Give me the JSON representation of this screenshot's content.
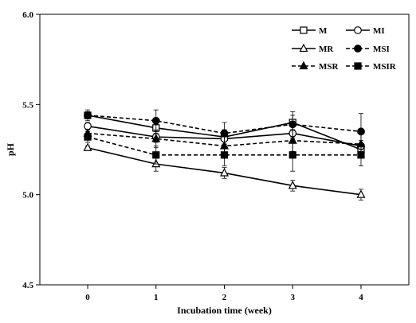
{
  "chart_data": {
    "type": "line",
    "title": "",
    "xlabel": "Incubation time (week)",
    "ylabel": "pH",
    "x": [
      0,
      1,
      2,
      3,
      4
    ],
    "x_tick_labels": [
      "0",
      "1",
      "2",
      "3",
      "4"
    ],
    "xlim": [
      -0.7,
      4.7
    ],
    "ylim": [
      4.5,
      6.0
    ],
    "y_ticks": [
      4.5,
      5.0,
      5.5,
      6.0
    ],
    "y_tick_labels": [
      "4.5",
      "5.0",
      "5.5",
      "6.0"
    ],
    "grid": false,
    "legend_position": "top-right",
    "series": [
      {
        "name": "M",
        "marker": "square-open",
        "dash": "solid",
        "values": [
          5.44,
          5.37,
          5.32,
          5.4,
          5.25
        ],
        "errors": [
          0.02,
          0.03,
          0.04,
          0.04,
          0.03
        ]
      },
      {
        "name": "MI",
        "marker": "circle-open",
        "dash": "solid",
        "values": [
          5.38,
          5.32,
          5.31,
          5.34,
          5.27
        ],
        "errors": [
          0.02,
          0.03,
          0.05,
          0.04,
          0.03
        ]
      },
      {
        "name": "MR",
        "marker": "triangle-open",
        "dash": "solid",
        "values": [
          5.26,
          5.17,
          5.12,
          5.05,
          5.0
        ],
        "errors": [
          0.01,
          0.04,
          0.03,
          0.03,
          0.03
        ]
      },
      {
        "name": "MSI",
        "marker": "circle-filled",
        "dash": "dashed",
        "values": [
          5.44,
          5.41,
          5.34,
          5.39,
          5.35
        ],
        "errors": [
          0.03,
          0.06,
          0.06,
          0.07,
          0.1
        ]
      },
      {
        "name": "MSR",
        "marker": "triangle-filled",
        "dash": "dashed",
        "values": [
          5.34,
          5.31,
          5.27,
          5.3,
          5.28
        ],
        "errors": [
          0.02,
          0.05,
          0.05,
          0.06,
          0.07
        ]
      },
      {
        "name": "MSIR",
        "marker": "square-filled",
        "dash": "dashed",
        "values": [
          5.32,
          5.22,
          5.22,
          5.22,
          5.22
        ],
        "errors": [
          0.03,
          0.05,
          0.06,
          0.09,
          0.06
        ]
      }
    ]
  }
}
